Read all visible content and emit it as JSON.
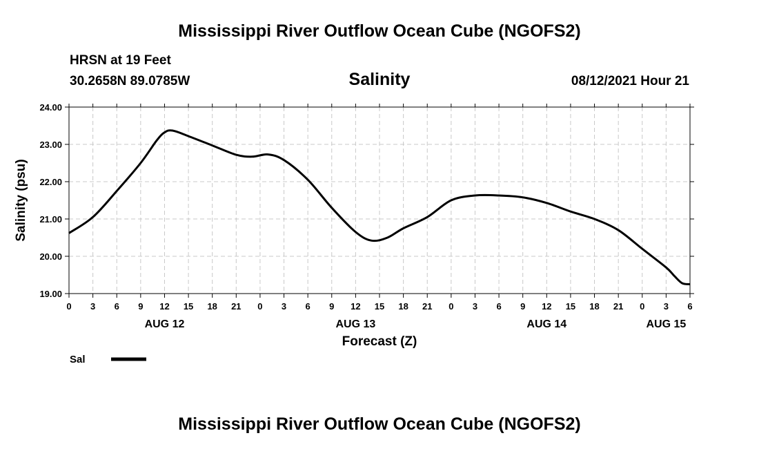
{
  "page": {
    "title_top": "Mississippi River Outflow Ocean Cube (NGOFS2)",
    "title_bottom": "Mississippi River Outflow Ocean Cube (NGOFS2)",
    "station": "HRSN at 19 Feet",
    "coords": "30.2658N  89.0785W",
    "variable": "Salinity",
    "datetime": "08/12/2021 Hour 21"
  },
  "colors": {
    "line": "#000000",
    "grid": "#c8c8c8",
    "axis": "#000000"
  },
  "chart_data": {
    "type": "line",
    "title": "Salinity",
    "xlabel": "Forecast (Z)",
    "ylabel": "Salinity (psu)",
    "ylim": [
      19.0,
      24.0
    ],
    "yticks": [
      19.0,
      20.0,
      21.0,
      22.0,
      23.0,
      24.0
    ],
    "ytick_labels": [
      "19.00",
      "20.00",
      "21.00",
      "22.00",
      "23.00",
      "24.00"
    ],
    "xlim": [
      0,
      78
    ],
    "x_unit": "forecast hours from 00Z AUG 12",
    "xticks": [
      0,
      3,
      6,
      9,
      12,
      15,
      18,
      21,
      24,
      27,
      30,
      33,
      36,
      39,
      42,
      45,
      48,
      51,
      54,
      57,
      60,
      63,
      66,
      69,
      72,
      75,
      78
    ],
    "xtick_labels": [
      "0",
      "3",
      "6",
      "9",
      "12",
      "15",
      "18",
      "21",
      "0",
      "3",
      "6",
      "9",
      "12",
      "15",
      "18",
      "21",
      "0",
      "3",
      "6",
      "9",
      "12",
      "15",
      "18",
      "21",
      "0",
      "3",
      "6"
    ],
    "date_labels": [
      {
        "x": 12,
        "label": "AUG 12"
      },
      {
        "x": 36,
        "label": "AUG 13"
      },
      {
        "x": 60,
        "label": "AUG 14"
      },
      {
        "x": 75,
        "label": "AUG 15"
      }
    ],
    "grid": true,
    "legend": {
      "position": "bottom-left",
      "entries": [
        "Sal"
      ]
    },
    "series": [
      {
        "name": "Sal",
        "x": [
          0,
          3,
          6,
          9,
          11,
          12,
          13,
          15,
          18,
          21,
          23,
          25,
          27,
          30,
          33,
          36,
          38,
          40,
          42,
          45,
          48,
          51,
          54,
          57,
          60,
          63,
          66,
          69,
          72,
          75,
          76,
          77,
          78
        ],
        "y": [
          20.62,
          21.05,
          21.75,
          22.5,
          23.1,
          23.32,
          23.37,
          23.22,
          22.97,
          22.72,
          22.67,
          22.73,
          22.58,
          22.05,
          21.3,
          20.65,
          20.42,
          20.5,
          20.75,
          21.05,
          21.5,
          21.63,
          21.63,
          21.58,
          21.43,
          21.2,
          21.0,
          20.7,
          20.2,
          19.7,
          19.48,
          19.28,
          19.25
        ]
      }
    ]
  }
}
